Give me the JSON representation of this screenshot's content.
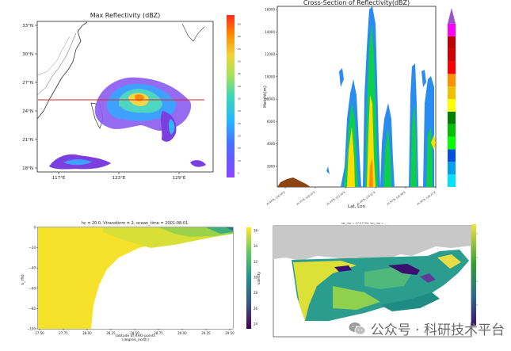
{
  "chart_data": [
    {
      "type": "heatmap",
      "title": "Max Reflectivity (dBZ)",
      "x_ticks": [
        "117°E",
        "123°E",
        "129°E"
      ],
      "y_ticks": [
        "33°N",
        "30°N",
        "27°N",
        "24°N",
        "21°N",
        "18°N"
      ],
      "colorbar_ticks": [
        "65",
        "60",
        "55",
        "50",
        "45",
        "40",
        "35",
        "30",
        "25",
        "20",
        "15",
        "10",
        "5"
      ],
      "colors": {
        "cold": "#7b3fe0",
        "mid": "#33b4ff",
        "warm": "#ff8a00",
        "line": "#d62728"
      }
    },
    {
      "type": "heatmap",
      "title": "Cross-Section of Reflectivity(dBZ)",
      "xlabel": "Lat, Lon",
      "ylabel": "Height(m)",
      "y_ticks": [
        "16000",
        "14000",
        "12000",
        "10000",
        "8000",
        "6000",
        "4000",
        "2000"
      ],
      "x_ticks": [
        "25.04°N, 118.54°E",
        "25.15°N, 120.15°E",
        "25.23°N, 122.35°E",
        "25.29°N, 124.12°E",
        "25.31°N, 126.48°E",
        "25.36°N, 128.21°E"
      ],
      "colorbar_colors": [
        "#00e0ff",
        "#00a0f0",
        "#0050e0",
        "#00ff00",
        "#00c000",
        "#008000",
        "#ffff00",
        "#f0c000",
        "#ff9000",
        "#ff0000",
        "#d00000",
        "#c00000",
        "#ff00ff",
        "#9955c9"
      ]
    },
    {
      "type": "heatmap",
      "title": "hc = 20.0, Vtransform = 2, ocean_time = 2001-08-01",
      "xlabel": "latitude of RHO-points\n[degree_north]",
      "ylabel": "s_rho",
      "x_ticks": [
        "27.50",
        "27.75",
        "28.00",
        "28.25",
        "28.50",
        "28.75",
        "29.00",
        "29.25",
        "29.50"
      ],
      "y_ticks": [
        "0",
        "−20",
        "−40",
        "−60",
        "−80",
        "−100"
      ],
      "colorbar_label": "salinity",
      "colorbar_ticks": [
        "36",
        "34",
        "32",
        "30",
        "28",
        "26",
        "24"
      ]
    },
    {
      "type": "heatmap",
      "title": "lat_rho = 27.57754, lon_rho = ...",
      "colors": {
        "land": "#c8c8c8",
        "high": "#f0e442",
        "mid": "#2ca02c",
        "low": "#3b0f70"
      }
    }
  ],
  "watermark": {
    "text": "公众号 · 科研技术平台",
    "icon": "wechat-icon"
  }
}
